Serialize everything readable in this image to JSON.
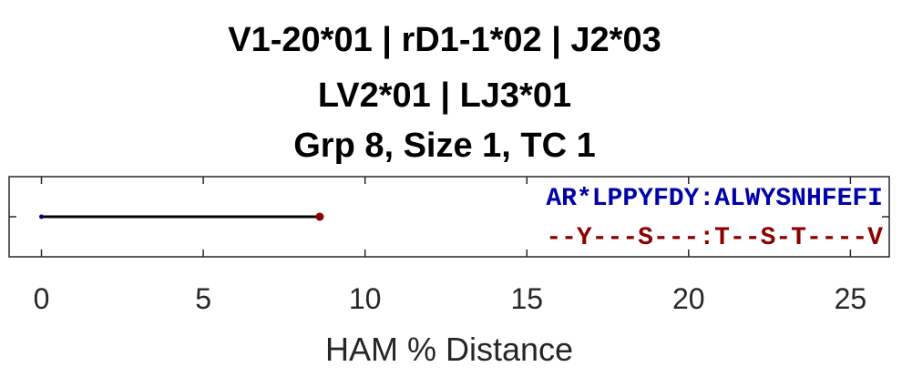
{
  "chart_data": {
    "type": "line",
    "title": [
      "V1-20*01 | rD1-1*02 | J2*03",
      "LV2*01 | LJ3*01",
      "Grp 8, Size 1, TC 1"
    ],
    "xlabel": "HAM % Distance",
    "ylabel": "",
    "xlim": [
      -1,
      26.2
    ],
    "xticks": [
      0,
      5,
      10,
      15,
      20,
      25
    ],
    "tick_labels": [
      "0",
      "5",
      "10",
      "15",
      "20",
      "25"
    ],
    "grid": false,
    "series": [
      {
        "name": "lineage",
        "x": [
          0,
          8.6
        ],
        "y": [
          0,
          0
        ],
        "line_color": "#000000",
        "point_colors": [
          "#00008b",
          "#8b0000"
        ]
      }
    ],
    "annotations": [
      {
        "text": "AR*LPPYFDY:ALWYSNHFEFI",
        "color": "#0000aa",
        "role": "reference-sequence"
      },
      {
        "text": "--Y---S---:T--S-T----V",
        "color": "#8b0000",
        "role": "mutated-sequence"
      }
    ]
  }
}
